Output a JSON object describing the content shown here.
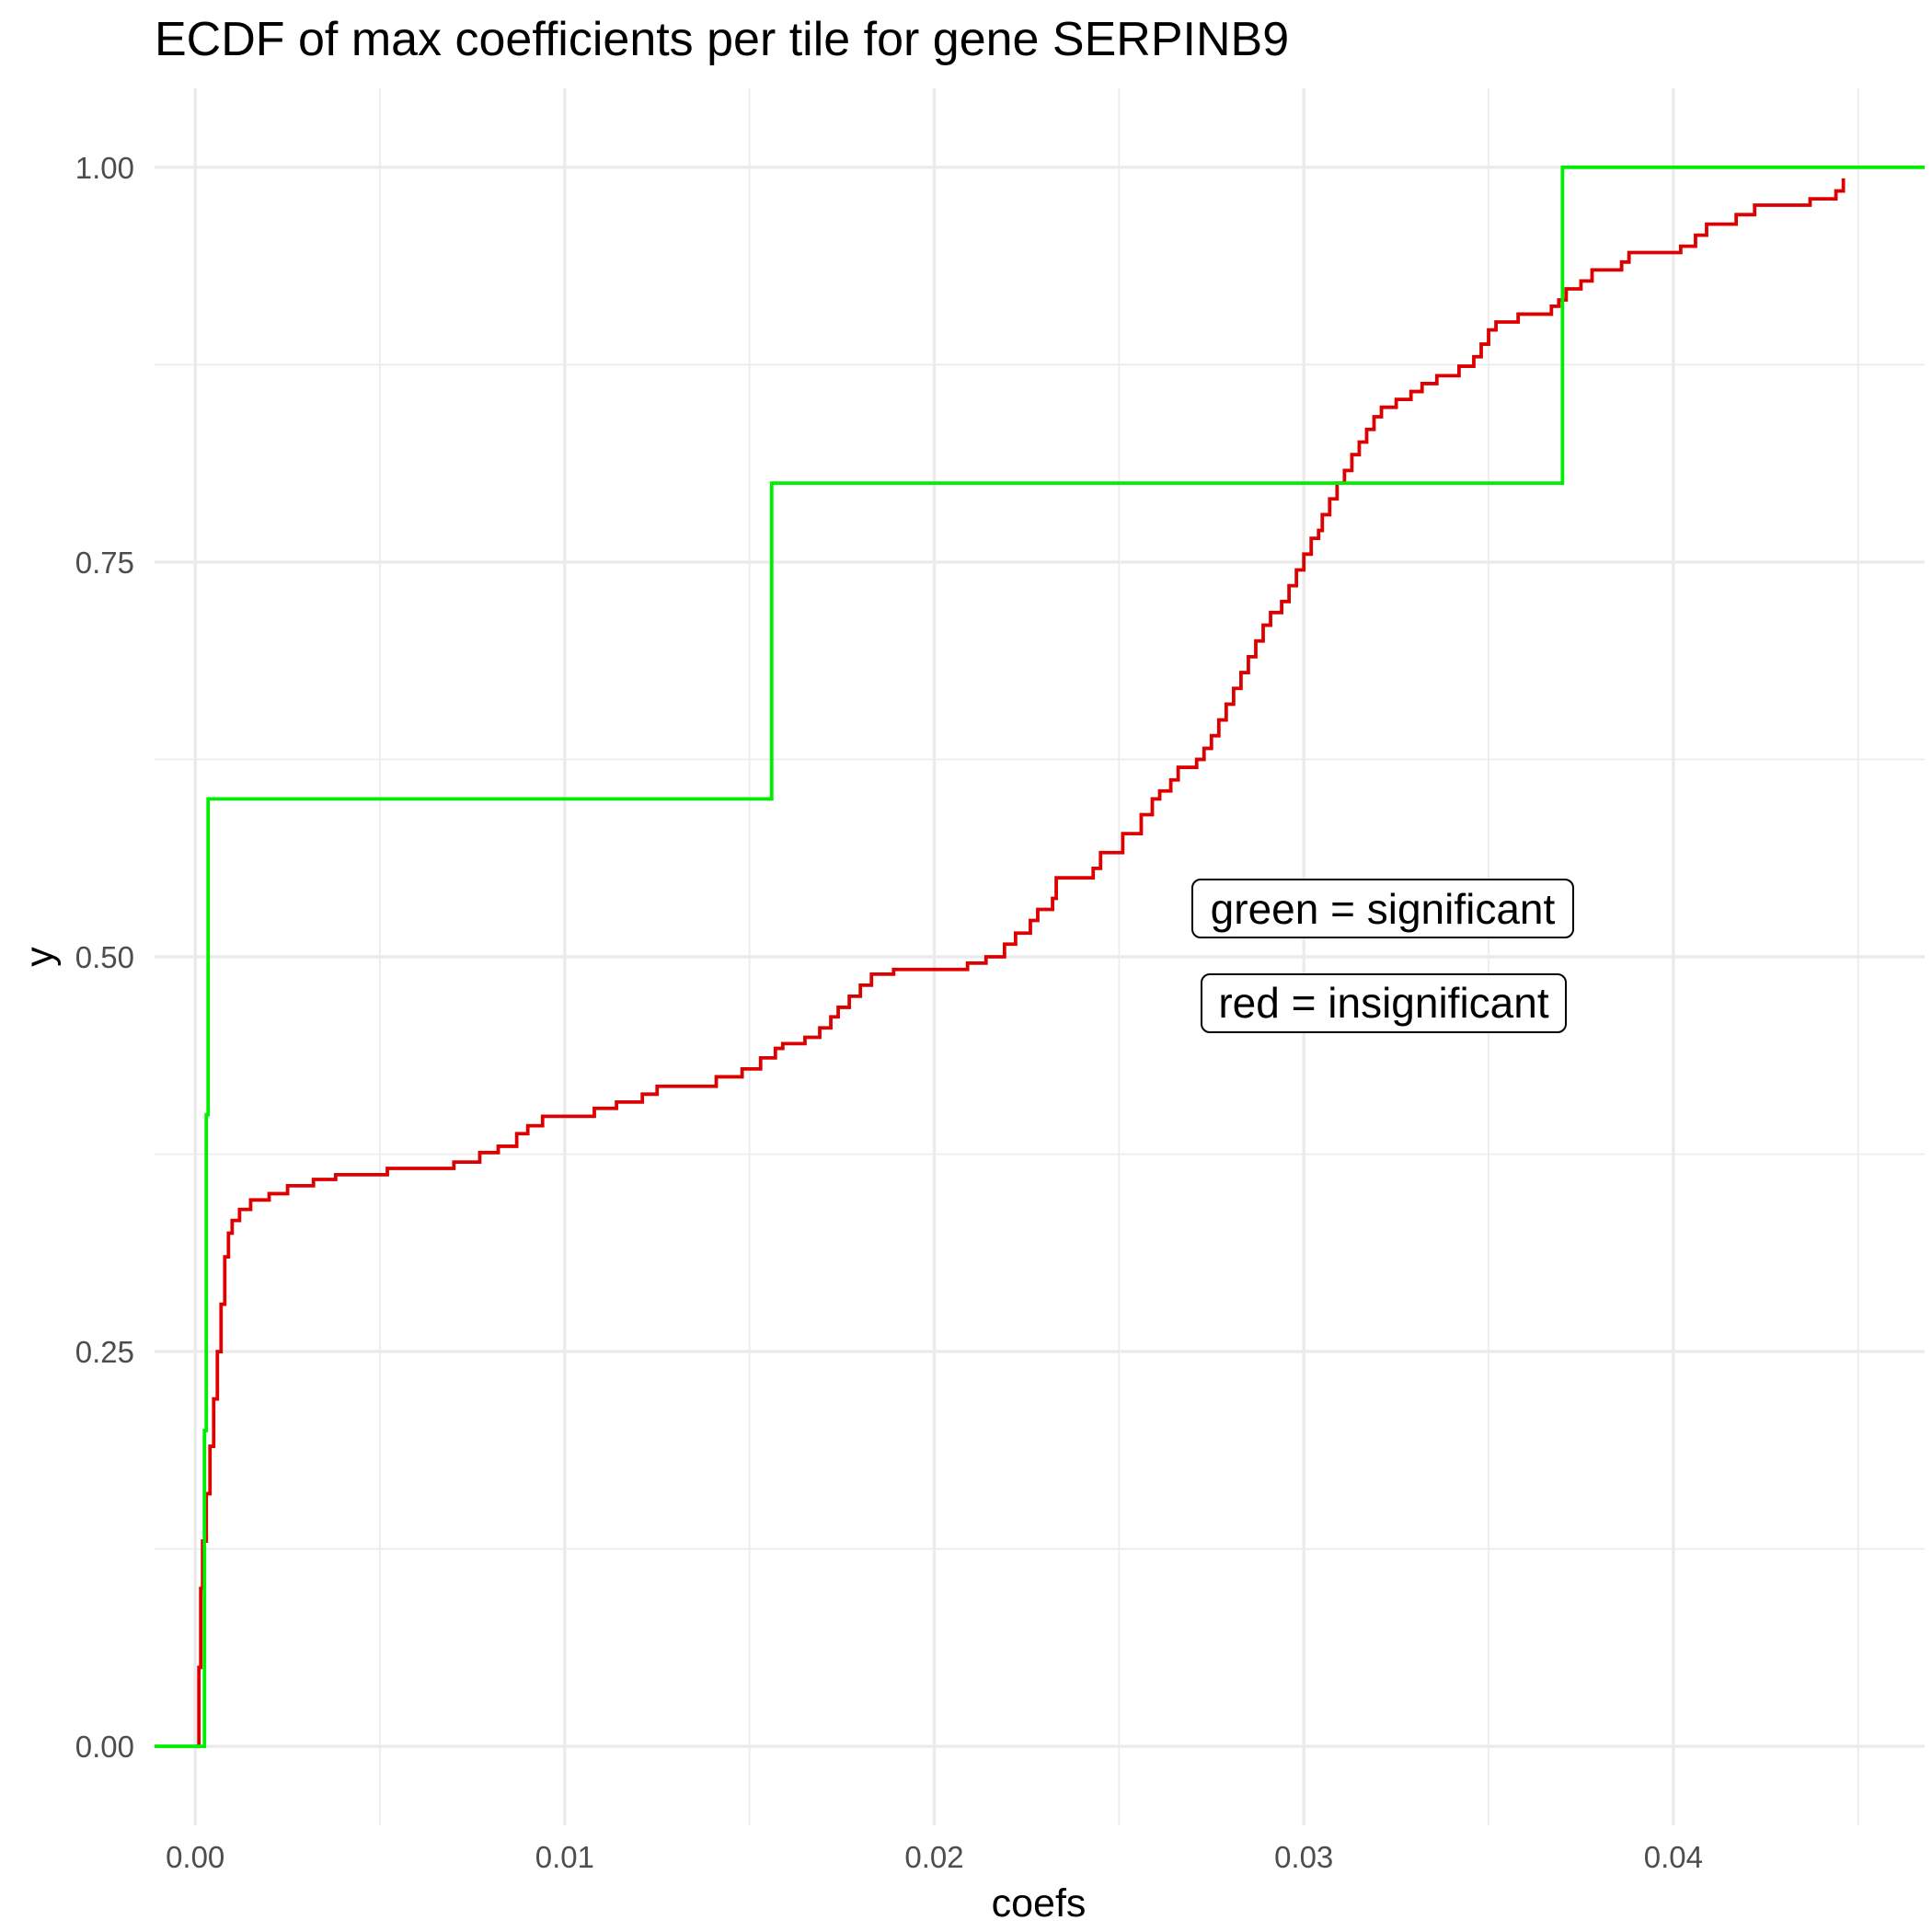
{
  "chart_data": {
    "type": "line",
    "title": "ECDF of max coefficients per tile for gene SERPINB9",
    "xlabel": "coefs",
    "ylabel": "y",
    "xlim": [
      -0.0011,
      0.0468
    ],
    "ylim": [
      -0.05,
      1.05
    ],
    "x_ticks": [
      0.0,
      0.01,
      0.02,
      0.03,
      0.04
    ],
    "x_tick_labels": [
      "0.00",
      "0.01",
      "0.02",
      "0.03",
      "0.04"
    ],
    "y_ticks": [
      0.0,
      0.25,
      0.5,
      0.75,
      1.0
    ],
    "y_tick_labels": [
      "0.00",
      "0.25",
      "0.50",
      "0.75",
      "1.00"
    ],
    "grid": true,
    "annotations": [
      "green = significant",
      "red = insignificant"
    ],
    "series": [
      {
        "color": "#00ee00",
        "step": true,
        "points": [
          [
            -0.0011,
            0.0
          ],
          [
            0.00025,
            0.0
          ],
          [
            0.00025,
            0.2
          ],
          [
            0.0003,
            0.4
          ],
          [
            0.00035,
            0.6
          ],
          [
            0.0156,
            0.6
          ],
          [
            0.0156,
            0.8
          ],
          [
            0.037,
            0.8
          ],
          [
            0.037,
            1.0
          ],
          [
            0.0468,
            1.0
          ]
        ]
      },
      {
        "color": "#dd0000",
        "step": true,
        "points": [
          [
            0.0,
            0.0
          ],
          [
            0.0001,
            0.05
          ],
          [
            0.00015,
            0.1
          ],
          [
            0.0002,
            0.13
          ],
          [
            0.0003,
            0.16
          ],
          [
            0.0004,
            0.19
          ],
          [
            0.0005,
            0.22
          ],
          [
            0.0006,
            0.25
          ],
          [
            0.0007,
            0.28
          ],
          [
            0.0008,
            0.31
          ],
          [
            0.0009,
            0.325
          ],
          [
            0.001,
            0.333
          ],
          [
            0.0012,
            0.34
          ],
          [
            0.0015,
            0.346
          ],
          [
            0.002,
            0.35
          ],
          [
            0.0025,
            0.355
          ],
          [
            0.0032,
            0.359
          ],
          [
            0.0038,
            0.362
          ],
          [
            0.0052,
            0.366
          ],
          [
            0.007,
            0.37
          ],
          [
            0.0077,
            0.376
          ],
          [
            0.0082,
            0.38
          ],
          [
            0.0087,
            0.388
          ],
          [
            0.009,
            0.393
          ],
          [
            0.0094,
            0.399
          ],
          [
            0.0108,
            0.404
          ],
          [
            0.0114,
            0.408
          ],
          [
            0.0121,
            0.413
          ],
          [
            0.0125,
            0.418
          ],
          [
            0.0141,
            0.424
          ],
          [
            0.0148,
            0.429
          ],
          [
            0.0153,
            0.436
          ],
          [
            0.0157,
            0.442
          ],
          [
            0.0159,
            0.445
          ],
          [
            0.0165,
            0.449
          ],
          [
            0.0169,
            0.455
          ],
          [
            0.0172,
            0.462
          ],
          [
            0.0174,
            0.468
          ],
          [
            0.0177,
            0.475
          ],
          [
            0.018,
            0.482
          ],
          [
            0.0183,
            0.489
          ],
          [
            0.0189,
            0.492
          ],
          [
            0.0209,
            0.496
          ],
          [
            0.0214,
            0.5
          ],
          [
            0.0219,
            0.508
          ],
          [
            0.0222,
            0.515
          ],
          [
            0.0226,
            0.523
          ],
          [
            0.0228,
            0.53
          ],
          [
            0.0232,
            0.537
          ],
          [
            0.0236,
            0.545
          ],
          [
            0.0237,
            0.55
          ],
          [
            0.0233,
            0.55
          ],
          [
            0.0238,
            0.55
          ],
          [
            0.0234,
            0.55
          ],
          [
            0.0234,
            0.55
          ],
          [
            0.0234,
            0.55
          ],
          [
            0.0234,
            0.55
          ]
        ]
      }
    ]
  }
}
